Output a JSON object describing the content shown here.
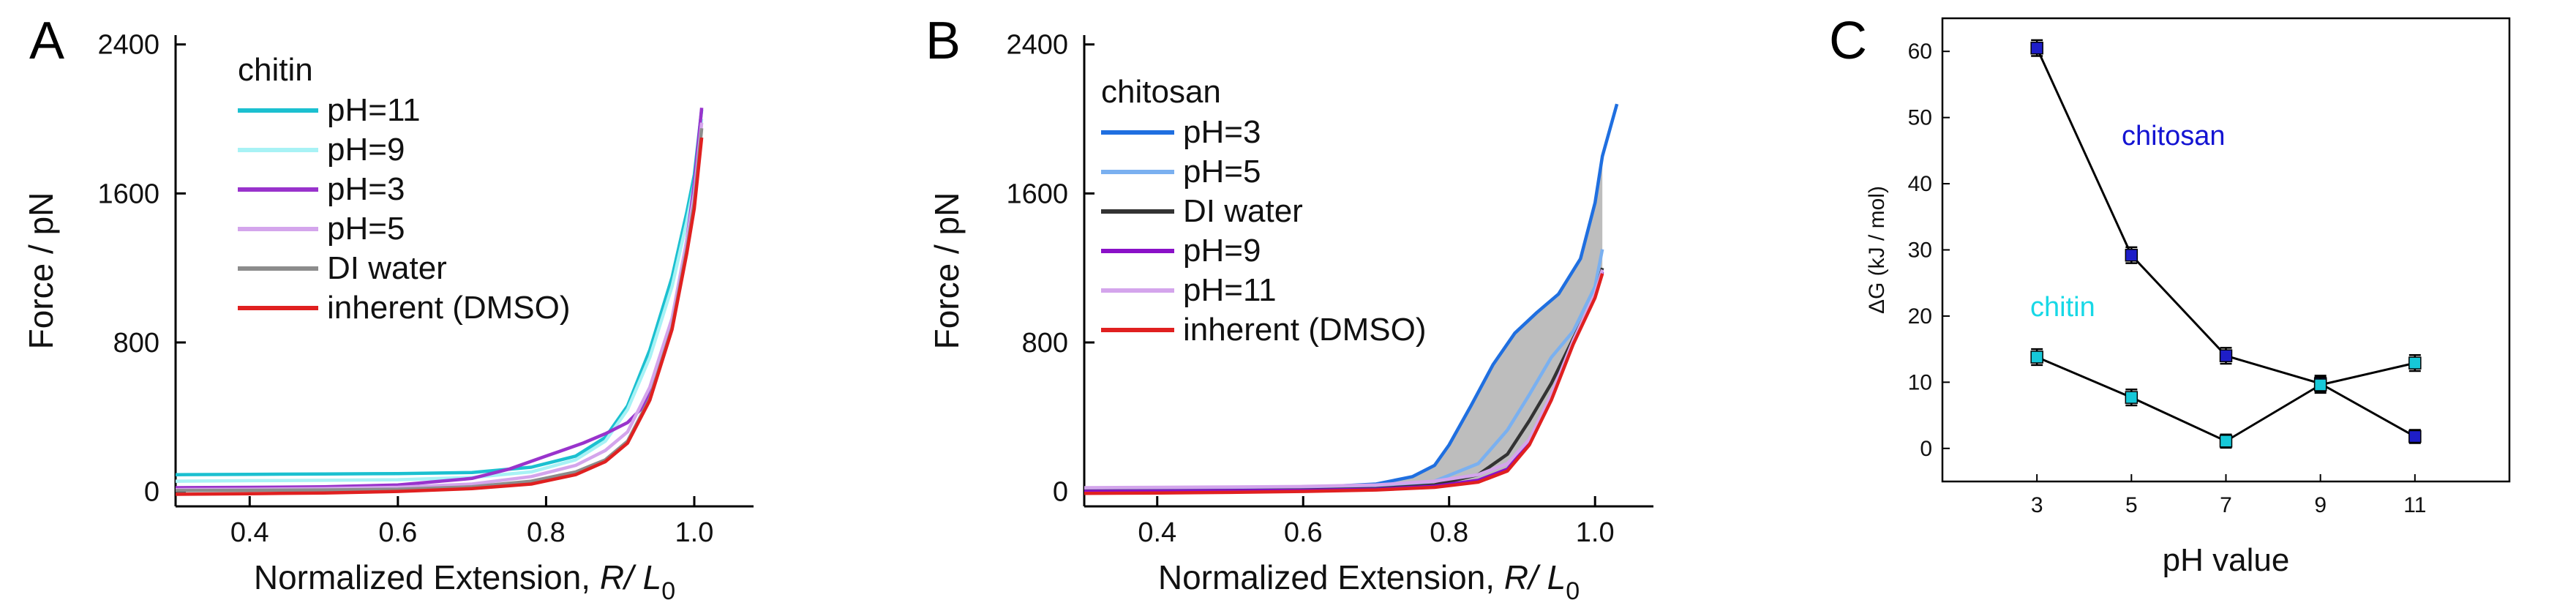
{
  "chart_data": [
    {
      "panel": "A",
      "type": "line",
      "title": "",
      "xlabel": "Normalized Extension, R/ L0",
      "xlabel_parts": {
        "main": "Normalized Extension, ",
        "italic": "R/ L",
        "sub": "0"
      },
      "ylabel": "Force / pN",
      "xlim": [
        0.3,
        1.08
      ],
      "ylim": [
        -80,
        2450
      ],
      "xticks": [
        0.4,
        0.6,
        0.8,
        1.0
      ],
      "xtick_labels": [
        "0.4",
        "0.6",
        "0.8",
        "1.0"
      ],
      "yticks": [
        0,
        800,
        1600,
        2400
      ],
      "ytick_labels": [
        "0",
        "800",
        "1600",
        "2400"
      ],
      "legend_title": "chitin",
      "legend_position": "top-left",
      "series": [
        {
          "name": "pH=11",
          "color": "#1bc0d0",
          "points": [
            [
              0.3,
              90
            ],
            [
              0.4,
              92
            ],
            [
              0.5,
              94
            ],
            [
              0.6,
              96
            ],
            [
              0.7,
              102
            ],
            [
              0.78,
              130
            ],
            [
              0.84,
              190
            ],
            [
              0.88,
              290
            ],
            [
              0.91,
              460
            ],
            [
              0.94,
              760
            ],
            [
              0.97,
              1150
            ],
            [
              0.99,
              1500
            ],
            [
              1.0,
              1700
            ],
            [
              1.01,
              2050
            ]
          ]
        },
        {
          "name": "pH=9",
          "color": "#a8f2f5",
          "points": [
            [
              0.3,
              55
            ],
            [
              0.4,
              58
            ],
            [
              0.5,
              60
            ],
            [
              0.6,
              63
            ],
            [
              0.7,
              75
            ],
            [
              0.78,
              105
            ],
            [
              0.84,
              170
            ],
            [
              0.88,
              270
            ],
            [
              0.91,
              440
            ],
            [
              0.94,
              720
            ],
            [
              0.97,
              1100
            ],
            [
              0.99,
              1450
            ],
            [
              1.0,
              1650
            ],
            [
              1.01,
              2000
            ]
          ]
        },
        {
          "name": "pH=3",
          "color": "#9933cc",
          "points": [
            [
              0.3,
              20
            ],
            [
              0.4,
              22
            ],
            [
              0.5,
              25
            ],
            [
              0.6,
              35
            ],
            [
              0.7,
              70
            ],
            [
              0.75,
              120
            ],
            [
              0.8,
              190
            ],
            [
              0.85,
              260
            ],
            [
              0.88,
              310
            ],
            [
              0.91,
              370
            ],
            [
              0.93,
              450
            ],
            [
              0.95,
              620
            ],
            [
              0.97,
              900
            ],
            [
              0.99,
              1350
            ],
            [
              1.0,
              1650
            ],
            [
              1.01,
              2060
            ]
          ]
        },
        {
          "name": "pH=5",
          "color": "#d4a5ec",
          "points": [
            [
              0.3,
              10
            ],
            [
              0.4,
              12
            ],
            [
              0.5,
              15
            ],
            [
              0.6,
              22
            ],
            [
              0.7,
              40
            ],
            [
              0.78,
              80
            ],
            [
              0.84,
              140
            ],
            [
              0.88,
              220
            ],
            [
              0.91,
              320
            ],
            [
              0.94,
              560
            ],
            [
              0.97,
              930
            ],
            [
              0.99,
              1350
            ],
            [
              1.0,
              1600
            ],
            [
              1.01,
              1980
            ]
          ]
        },
        {
          "name": "DI water",
          "color": "#8c8c8c",
          "points": [
            [
              0.3,
              5
            ],
            [
              0.4,
              6
            ],
            [
              0.5,
              8
            ],
            [
              0.6,
              12
            ],
            [
              0.7,
              25
            ],
            [
              0.78,
              55
            ],
            [
              0.84,
              105
            ],
            [
              0.88,
              170
            ],
            [
              0.91,
              270
            ],
            [
              0.94,
              500
            ],
            [
              0.97,
              880
            ],
            [
              0.99,
              1300
            ],
            [
              1.0,
              1550
            ],
            [
              1.01,
              1950
            ]
          ]
        },
        {
          "name": "inherent (DMSO)",
          "color": "#e02020",
          "points": [
            [
              0.3,
              -15
            ],
            [
              0.4,
              -12
            ],
            [
              0.5,
              -8
            ],
            [
              0.6,
              0
            ],
            [
              0.7,
              15
            ],
            [
              0.78,
              40
            ],
            [
              0.84,
              90
            ],
            [
              0.88,
              160
            ],
            [
              0.91,
              260
            ],
            [
              0.94,
              490
            ],
            [
              0.97,
              870
            ],
            [
              0.99,
              1280
            ],
            [
              1.0,
              1520
            ],
            [
              1.01,
              1900
            ]
          ]
        }
      ]
    },
    {
      "panel": "B",
      "type": "line",
      "title": "",
      "xlabel": "Normalized Extension, R/ L0",
      "xlabel_parts": {
        "main": "Normalized Extension, ",
        "italic": "R/ L",
        "sub": "0"
      },
      "ylabel": "Force / pN",
      "xlim": [
        0.3,
        1.08
      ],
      "ylim": [
        -80,
        2450
      ],
      "xticks": [
        0.4,
        0.6,
        0.8,
        1.0
      ],
      "xtick_labels": [
        "0.4",
        "0.6",
        "0.8",
        "1.0"
      ],
      "yticks": [
        0,
        800,
        1600,
        2400
      ],
      "ytick_labels": [
        "0",
        "800",
        "1600",
        "2400"
      ],
      "legend_title": "chitosan",
      "legend_position": "top-left",
      "shaded_between": [
        "pH=3",
        "inherent (DMSO)"
      ],
      "shade_color": "#bdbdbd",
      "series": [
        {
          "name": "pH=3",
          "color": "#1f6fe0",
          "points": [
            [
              0.3,
              10
            ],
            [
              0.4,
              12
            ],
            [
              0.5,
              15
            ],
            [
              0.6,
              20
            ],
            [
              0.7,
              40
            ],
            [
              0.75,
              80
            ],
            [
              0.78,
              140
            ],
            [
              0.8,
              250
            ],
            [
              0.83,
              460
            ],
            [
              0.86,
              680
            ],
            [
              0.89,
              850
            ],
            [
              0.92,
              960
            ],
            [
              0.95,
              1060
            ],
            [
              0.98,
              1250
            ],
            [
              1.0,
              1550
            ],
            [
              1.01,
              1800
            ],
            [
              1.03,
              2080
            ]
          ]
        },
        {
          "name": "pH=5",
          "color": "#7ab0f0",
          "points": [
            [
              0.3,
              5
            ],
            [
              0.4,
              7
            ],
            [
              0.5,
              9
            ],
            [
              0.6,
              12
            ],
            [
              0.7,
              22
            ],
            [
              0.78,
              55
            ],
            [
              0.84,
              150
            ],
            [
              0.88,
              330
            ],
            [
              0.91,
              520
            ],
            [
              0.94,
              720
            ],
            [
              0.97,
              860
            ],
            [
              1.0,
              1100
            ],
            [
              1.01,
              1300
            ]
          ]
        },
        {
          "name": "DI water",
          "color": "#333333",
          "points": [
            [
              0.3,
              2
            ],
            [
              0.4,
              3
            ],
            [
              0.5,
              5
            ],
            [
              0.6,
              8
            ],
            [
              0.7,
              15
            ],
            [
              0.78,
              35
            ],
            [
              0.84,
              90
            ],
            [
              0.88,
              200
            ],
            [
              0.91,
              380
            ],
            [
              0.94,
              580
            ],
            [
              0.97,
              820
            ],
            [
              1.0,
              1050
            ],
            [
              1.01,
              1200
            ]
          ]
        },
        {
          "name": "pH=9",
          "color": "#8a10c8",
          "points": [
            [
              0.3,
              0
            ],
            [
              0.4,
              2
            ],
            [
              0.5,
              4
            ],
            [
              0.6,
              6
            ],
            [
              0.7,
              12
            ],
            [
              0.78,
              28
            ],
            [
              0.84,
              60
            ],
            [
              0.88,
              120
            ],
            [
              0.91,
              260
            ],
            [
              0.94,
              500
            ],
            [
              0.97,
              800
            ],
            [
              1.0,
              1050
            ],
            [
              1.01,
              1180
            ]
          ]
        },
        {
          "name": "pH=11",
          "color": "#d4a5ec",
          "points": [
            [
              0.3,
              20
            ],
            [
              0.4,
              22
            ],
            [
              0.5,
              24
            ],
            [
              0.6,
              27
            ],
            [
              0.7,
              35
            ],
            [
              0.78,
              55
            ],
            [
              0.84,
              90
            ],
            [
              0.88,
              150
            ],
            [
              0.91,
              280
            ],
            [
              0.94,
              520
            ],
            [
              0.97,
              810
            ],
            [
              1.0,
              1060
            ],
            [
              1.01,
              1190
            ]
          ]
        },
        {
          "name": "inherent (DMSO)",
          "color": "#e02020",
          "points": [
            [
              0.3,
              -10
            ],
            [
              0.4,
              -8
            ],
            [
              0.5,
              -5
            ],
            [
              0.6,
              0
            ],
            [
              0.7,
              8
            ],
            [
              0.78,
              22
            ],
            [
              0.84,
              50
            ],
            [
              0.88,
              110
            ],
            [
              0.91,
              250
            ],
            [
              0.94,
              490
            ],
            [
              0.97,
              790
            ],
            [
              1.0,
              1040
            ],
            [
              1.01,
              1170
            ]
          ]
        }
      ]
    },
    {
      "panel": "C",
      "type": "line",
      "title": "",
      "xlabel": "pH value",
      "ylabel": "ΔG (kJ / mol)",
      "xlim": [
        1,
        13
      ],
      "ylim": [
        -5,
        65
      ],
      "xticks": [
        3,
        5,
        7,
        9,
        11
      ],
      "xtick_labels": [
        "3",
        "5",
        "7",
        "9",
        "11"
      ],
      "yticks": [
        0,
        10,
        20,
        30,
        40,
        50,
        60
      ],
      "ytick_labels": [
        "0",
        "10",
        "20",
        "30",
        "40",
        "50",
        "60"
      ],
      "series": [
        {
          "name": "chitosan",
          "label_color": "#1414d2",
          "marker_color": "#1e1ec8",
          "x": [
            3,
            5,
            7,
            9,
            11
          ],
          "values": [
            60.5,
            29.2,
            14.0,
            9.8,
            1.8
          ],
          "errors": [
            1.2,
            1.2,
            1.2,
            1.2,
            1.0
          ]
        },
        {
          "name": "chitin",
          "label_color": "#17d8e6",
          "marker_color": "#17c8d8",
          "x": [
            3,
            5,
            7,
            9,
            11
          ],
          "values": [
            13.8,
            7.7,
            1.1,
            9.6,
            12.9
          ],
          "errors": [
            1.2,
            1.2,
            1.0,
            1.2,
            1.2
          ]
        }
      ]
    }
  ]
}
